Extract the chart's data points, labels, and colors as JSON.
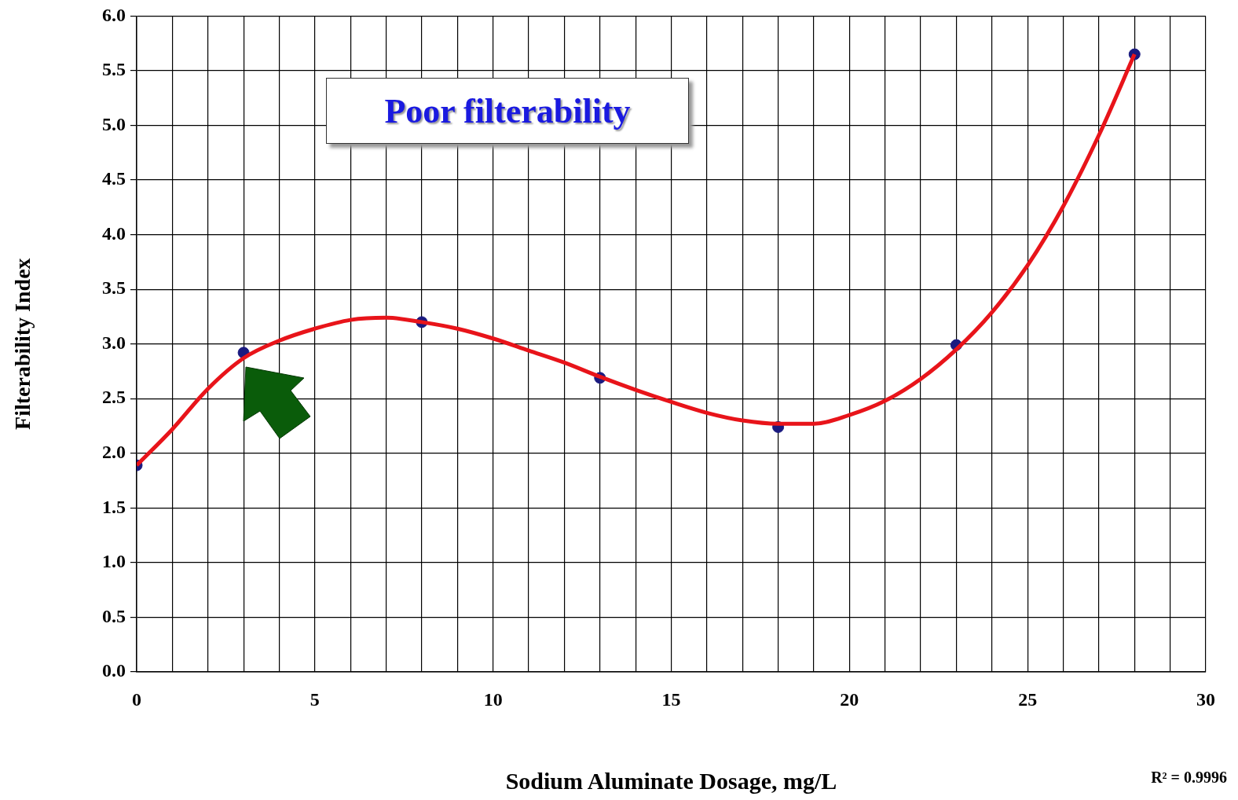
{
  "chart_data": {
    "type": "scatter",
    "xlabel": "Sodium Aluminate Dosage, mg/L",
    "ylabel": "Filterability Index",
    "annotations": [
      "Poor filterability",
      "R² = 0.9996"
    ],
    "xlim": [
      0,
      30
    ],
    "xticks": [
      0,
      {
        "value": 1,
        "label": null
      },
      {
        "value": 2,
        "label": null
      },
      {
        "value": 3,
        "label": null
      },
      {
        "value": 4,
        "label": null
      },
      5,
      {
        "value": 6,
        "label": null
      },
      {
        "value": 7,
        "label": null
      },
      {
        "value": 8,
        "label": null
      },
      {
        "value": 9,
        "label": null
      },
      10,
      {
        "value": 11,
        "label": null
      },
      {
        "value": 12,
        "label": null
      },
      {
        "value": 13,
        "label": null
      },
      {
        "value": 14,
        "label": null
      },
      15,
      {
        "value": 16,
        "label": null
      },
      {
        "value": 17,
        "label": null
      },
      {
        "value": 18,
        "label": null
      },
      {
        "value": 19,
        "label": null
      },
      20,
      {
        "value": 21,
        "label": null
      },
      {
        "value": 22,
        "label": null
      },
      {
        "value": 23,
        "label": null
      },
      {
        "value": 24,
        "label": null
      },
      25,
      {
        "value": 26,
        "label": null
      },
      {
        "value": 27,
        "label": null
      },
      {
        "value": 28,
        "label": null
      },
      {
        "value": 29,
        "label": null
      },
      30
    ],
    "ylim": [
      0,
      6
    ],
    "yticks": [
      {
        "value": 0,
        "label": "0.0"
      },
      0.5,
      {
        "value": 1,
        "label": "1.0"
      },
      1.5,
      {
        "value": 2,
        "label": "2.0"
      },
      2.5,
      {
        "value": 3,
        "label": "3.0"
      },
      3.5,
      {
        "value": 4,
        "label": "4.0"
      },
      4.5,
      {
        "value": 5,
        "label": "5.0"
      },
      5.5,
      {
        "value": 6,
        "label": "6.0"
      }
    ],
    "grid": true,
    "legend": false,
    "series": [
      {
        "type": "scatter",
        "color": "#1a1a80",
        "marker": "circle",
        "x": [
          0,
          3,
          8,
          13,
          18,
          23,
          28
        ],
        "values": [
          1.89,
          2.92,
          3.2,
          2.69,
          2.24,
          2.99,
          5.65
        ]
      },
      {
        "type": "line",
        "color": "#e8141a",
        "marker": "none",
        "line_style": "solid",
        "x": [
          0,
          1,
          2,
          3,
          4,
          5,
          6,
          7,
          8,
          9,
          10,
          11,
          12,
          13,
          14,
          15,
          16,
          17,
          18,
          19,
          20,
          21,
          22,
          23,
          24,
          25,
          26,
          27,
          28
        ],
        "values": [
          1.89,
          2.22,
          2.59,
          2.87,
          3.03,
          3.14,
          3.22,
          3.24,
          3.2,
          3.14,
          3.05,
          2.94,
          2.83,
          2.7,
          2.58,
          2.47,
          2.37,
          2.3,
          2.27,
          2.27,
          2.35,
          2.48,
          2.68,
          2.95,
          3.29,
          3.72,
          4.26,
          4.91,
          5.65
        ]
      }
    ]
  }
}
